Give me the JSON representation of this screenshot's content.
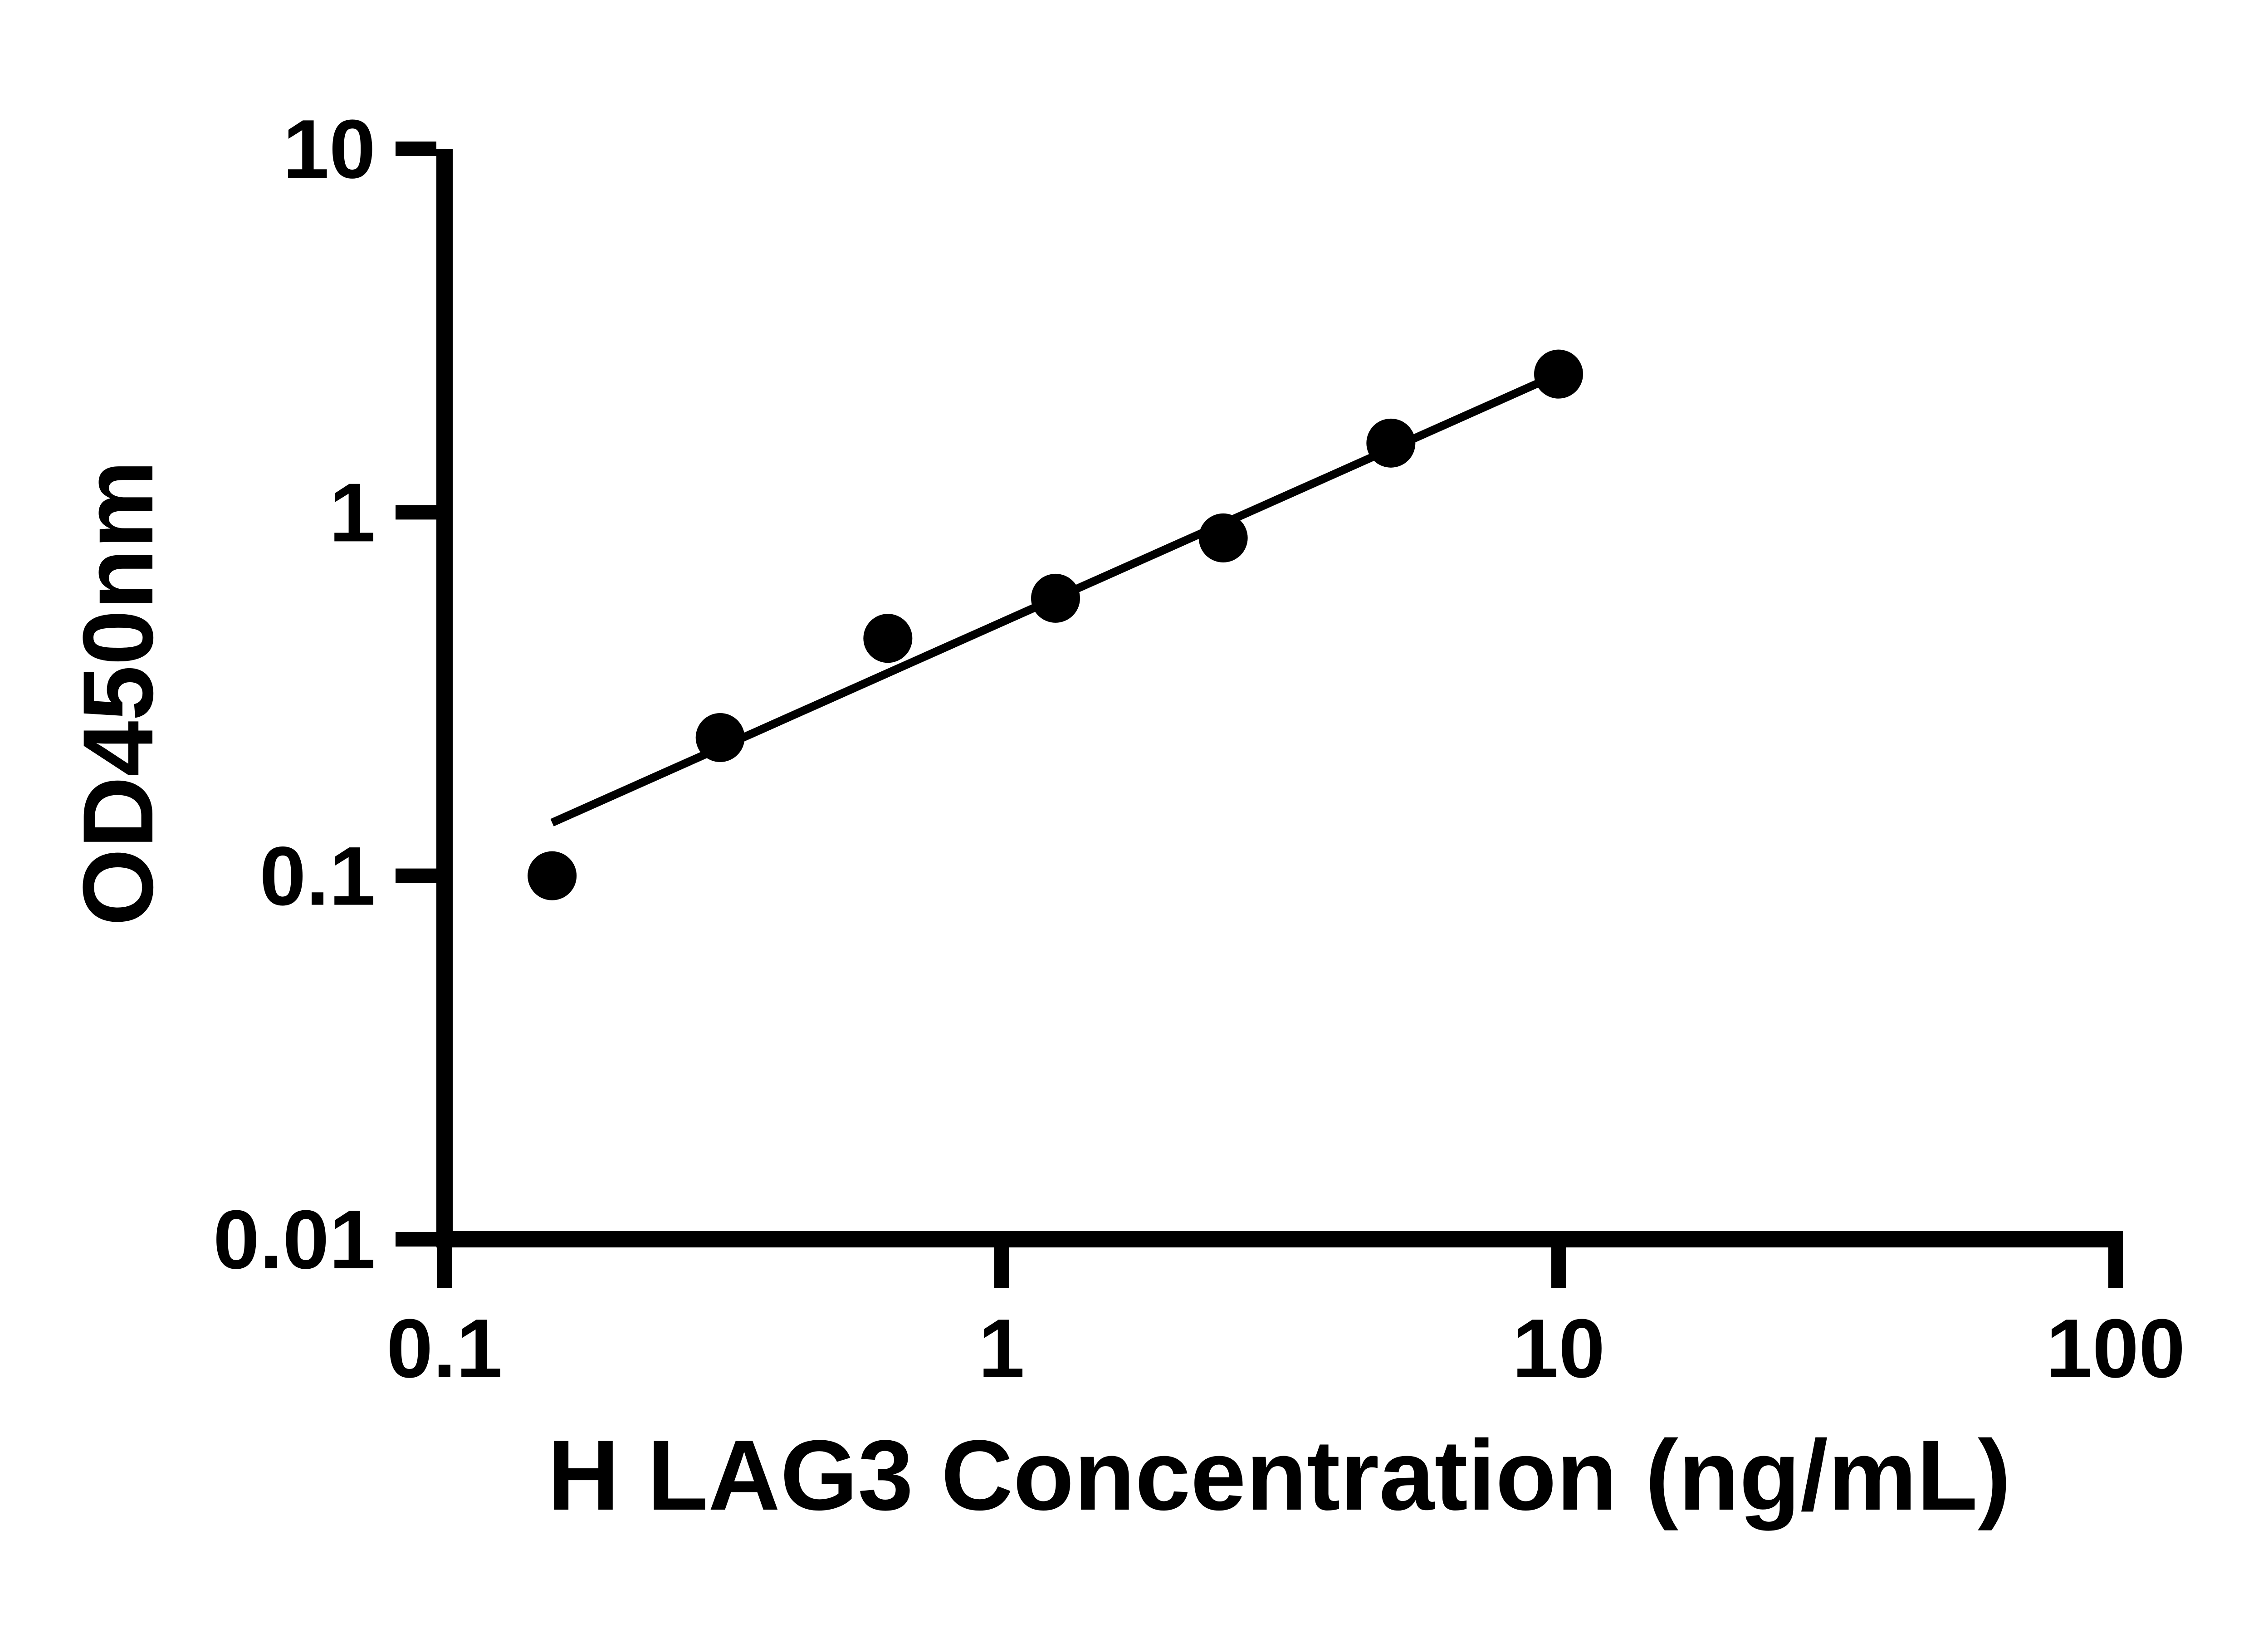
{
  "chart_data": {
    "type": "scatter",
    "title": "",
    "xlabel": "H LAG3 Concentration (ng/mL)",
    "ylabel": "OD450nm",
    "x_scale": "log",
    "y_scale": "log",
    "xlim": [
      0.1,
      100
    ],
    "ylim": [
      0.01,
      10
    ],
    "x_ticks": [
      0.1,
      1,
      10,
      100
    ],
    "x_tick_labels": [
      "0.1",
      "1",
      "10",
      "100"
    ],
    "y_ticks": [
      0.01,
      0.1,
      1,
      10
    ],
    "y_tick_labels": [
      "0.01",
      "0.1",
      "1",
      "10"
    ],
    "grid": false,
    "legend": "none",
    "series": [
      {
        "name": "regression-line",
        "type": "line",
        "color": "#000000",
        "stroke_width": 4.5,
        "points": [
          {
            "x": 0.156,
            "y": 0.14
          },
          {
            "x": 10,
            "y": 2.4
          }
        ]
      },
      {
        "name": "standard-curve-points",
        "type": "scatter",
        "marker": "circle",
        "marker_radius": 13.5,
        "color": "#000000",
        "points": [
          {
            "x": 0.156,
            "y": 0.1
          },
          {
            "x": 0.3125,
            "y": 0.24
          },
          {
            "x": 0.625,
            "y": 0.45
          },
          {
            "x": 1.25,
            "y": 0.58
          },
          {
            "x": 2.5,
            "y": 0.85
          },
          {
            "x": 5,
            "y": 1.55
          },
          {
            "x": 10,
            "y": 2.4
          }
        ]
      }
    ]
  },
  "colors": {
    "axis": "#000000",
    "marker": "#000000",
    "background": "#ffffff"
  },
  "layout_hints": {
    "tick_direction": "outward",
    "axes_shown": [
      "left",
      "bottom"
    ]
  }
}
